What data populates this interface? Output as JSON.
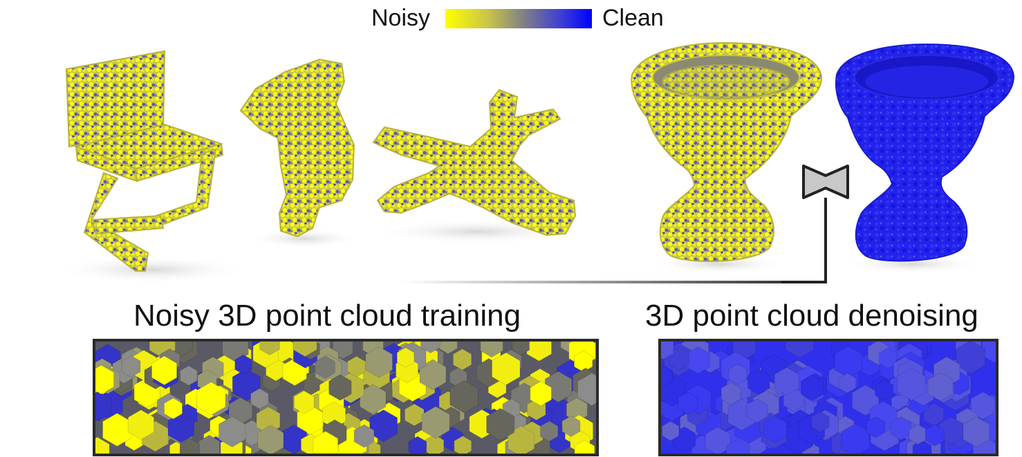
{
  "colorbar": {
    "left_label": "Noisy",
    "right_label": "Clean",
    "colors": {
      "noisy": "#ffff00",
      "mid": "#808080",
      "clean": "#0000ff"
    }
  },
  "captions": {
    "training": "Noisy 3D point cloud training",
    "denoising": "3D point cloud denoising"
  },
  "icons": {
    "network": "bowtie-network-icon"
  }
}
